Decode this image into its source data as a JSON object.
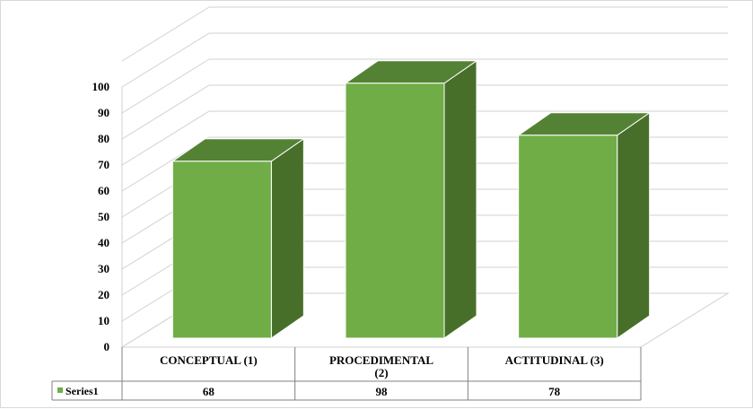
{
  "chart_data": {
    "type": "bar",
    "style": "3d-column-with-data-table",
    "categories": [
      "CONCEPTUAL (1)",
      "PROCEDIMENTAL (2)",
      "ACTITUDINAL (3)"
    ],
    "series": [
      {
        "name": "Series1",
        "values": [
          68,
          98,
          78
        ]
      }
    ],
    "yticks": [
      0,
      10,
      20,
      30,
      40,
      50,
      60,
      70,
      80,
      90,
      100
    ],
    "ylim": [
      0,
      100
    ],
    "grid": true,
    "legend": "data-table-left"
  },
  "colors": {
    "bar_front": "#70ad47",
    "bar_top": "#548235",
    "bar_side": "#476f2a",
    "gridline": "#d0d0d0",
    "table_border": "#808080",
    "legend_key": "#70ad47"
  }
}
